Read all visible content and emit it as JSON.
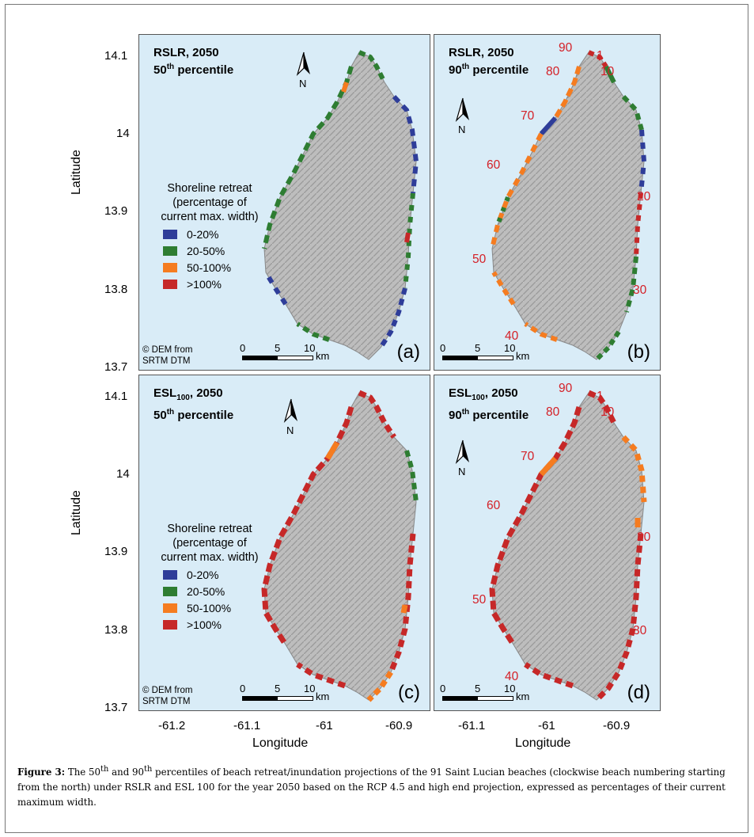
{
  "colors": {
    "water": "#d9ecf7",
    "blue": "#2e3d99",
    "green": "#2e7d32",
    "orange": "#f57c20",
    "red": "#c62828",
    "numbers": "#d42027"
  },
  "panels": [
    {
      "id": "a",
      "title_line1": "RSLR, 2050",
      "title_pct": "50",
      "title_pct_sup": "th",
      "title_tail": "percentile",
      "label": "(a)",
      "dem_line1": "© DEM from",
      "dem_line2": "SRTM DTM",
      "legend": true
    },
    {
      "id": "b",
      "title_line1": "RSLR, 2050",
      "title_pct": "90",
      "title_pct_sup": "th",
      "title_tail": "percentile",
      "label": "(b)",
      "legend": false
    },
    {
      "id": "c",
      "title_esl": "ESL",
      "title_esl_sub": "100",
      "title_year": ", 2050",
      "title_pct": "50",
      "title_pct_sup": "th",
      "title_tail": "percentile",
      "label": "(c)",
      "dem_line1": "© DEM from",
      "dem_line2": "SRTM DTM",
      "legend": true
    },
    {
      "id": "d",
      "title_esl": "ESL",
      "title_esl_sub": "100",
      "title_year": ", 2050",
      "title_pct": "90",
      "title_pct_sup": "th",
      "title_tail": "percentile",
      "label": "(d)",
      "legend": false
    }
  ],
  "legend": {
    "title_lines": [
      "Shoreline retreat",
      "(percentage of",
      "current max. width)"
    ],
    "items": [
      {
        "label": "0-20%",
        "color": "#2e3d99"
      },
      {
        "label": "20-50%",
        "color": "#2e7d32"
      },
      {
        "label": "50-100%",
        "color": "#f57c20"
      },
      {
        "label": ">100%",
        "color": "#c62828"
      }
    ]
  },
  "scalebar": {
    "t0": "0",
    "t5": "5",
    "t10": "10",
    "unit": "km"
  },
  "north_label": "N",
  "beach_numbers": [
    "90",
    "1",
    "80",
    "10",
    "70",
    "60",
    "20",
    "50",
    "30",
    "40"
  ],
  "axes": {
    "ylabel": "Latitude",
    "xlabel": "Longitude",
    "y_ticks_top": [
      "14.1",
      "14",
      "13.9",
      "13.8",
      "13.7"
    ],
    "y_ticks_bottom": [
      "14.1",
      "14",
      "13.9",
      "13.8",
      "13.7"
    ],
    "x_ticks_left": [
      "-61.2",
      "-61.1",
      "-61",
      "-60.9"
    ],
    "x_ticks_right": [
      "-61.1",
      "-61",
      "-60.9"
    ]
  },
  "caption": {
    "label": "Figure 3:",
    "text_a": "  The 50",
    "sup1": "th",
    "text_b": " and 90",
    "sup2": "th",
    "text_c": " percentiles of beach retreat/inundation projections of the 91 Saint Lucian beaches (clockwise beach numbering starting from the north) under RSLR and ESL 100 for the year 2050 based on the RCP 4.5 and high end projection, expressed as percentages of their current maximum width."
  }
}
